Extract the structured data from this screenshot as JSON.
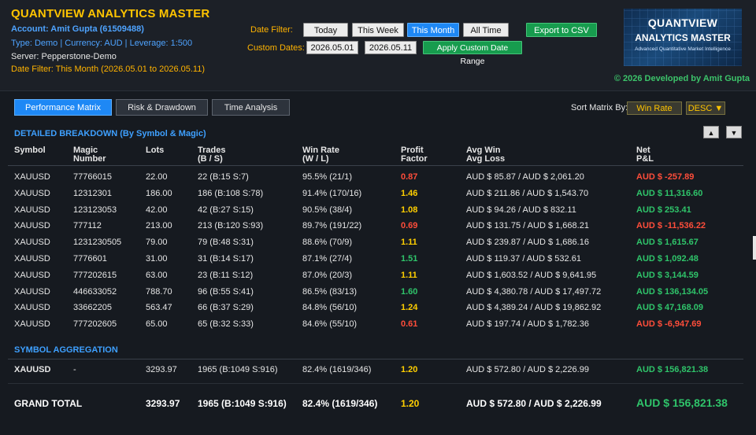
{
  "header": {
    "title": "QUANTVIEW ANALYTICS MASTER",
    "account": "Account: Amit Gupta (61509488)",
    "meta": "Type: Demo  |  Currency: AUD  |  Leverage: 1:500",
    "server": "Server: Pepperstone-Demo",
    "date_filter_status": "Date Filter: This Month (2026.05.01 to 2026.05.11)",
    "credit": "© 2026 Developed by Amit Gupta"
  },
  "filters": {
    "date_filter_label": "Date Filter:",
    "custom_dates_label": "Custom Dates:",
    "buttons": {
      "today": "Today",
      "this_week": "This Week",
      "this_month": "This Month",
      "all_time": "All Time"
    },
    "export": "Export to CSV",
    "custom_from": "2026.05.01",
    "custom_to": "2026.05.11",
    "apply": "Apply Custom Date Range"
  },
  "logo": {
    "line1": "QUANTVIEW",
    "line2": "ANALYTICS MASTER",
    "line3": "Advanced Quantitative Market Intelligence"
  },
  "tabs": {
    "performance": "Performance Matrix",
    "risk": "Risk & Drawdown",
    "time": "Time Analysis"
  },
  "sort": {
    "label": "Sort Matrix By:",
    "field": "Win Rate",
    "order": "DESC ▼"
  },
  "breakdown": {
    "title": "DETAILED BREAKDOWN (By Symbol & Magic)",
    "up": "▲",
    "down": "▼",
    "headers": {
      "symbol": "Symbol",
      "magic1": "Magic",
      "magic2": "Number",
      "lots": "Lots",
      "trades1": "Trades",
      "trades2": "(B / S)",
      "winrate1": "Win Rate",
      "winrate2": "(W / L)",
      "pf1": "Profit",
      "pf2": "Factor",
      "avg1": "Avg Win",
      "avg2": "Avg Loss",
      "pnl1": "Net",
      "pnl2": "P&L"
    },
    "rows": [
      {
        "symbol": "XAUUSD",
        "magic": "77766015",
        "lots": "22.00",
        "trades": "22  (B:15 S:7)",
        "winrate": "95.5%  (21/1)",
        "pf": "0.87",
        "pf_color": "red",
        "avg": "AUD $ 85.87 / AUD $ 2,061.20",
        "pnl": "AUD $ -257.89",
        "pnl_color": "red"
      },
      {
        "symbol": "XAUUSD",
        "magic": "12312301",
        "lots": "186.00",
        "trades": "186  (B:108 S:78)",
        "winrate": "91.4%  (170/16)",
        "pf": "1.46",
        "pf_color": "yellow",
        "avg": "AUD $ 211.86 / AUD $ 1,543.70",
        "pnl": "AUD $ 11,316.60",
        "pnl_color": "green"
      },
      {
        "symbol": "XAUUSD",
        "magic": "123123053",
        "lots": "42.00",
        "trades": "42  (B:27 S:15)",
        "winrate": "90.5%  (38/4)",
        "pf": "1.08",
        "pf_color": "yellow",
        "avg": "AUD $ 94.26 / AUD $ 832.11",
        "pnl": "AUD $ 253.41",
        "pnl_color": "green"
      },
      {
        "symbol": "XAUUSD",
        "magic": "777112",
        "lots": "213.00",
        "trades": "213  (B:120 S:93)",
        "winrate": "89.7%  (191/22)",
        "pf": "0.69",
        "pf_color": "red",
        "avg": "AUD $ 131.75 / AUD $ 1,668.21",
        "pnl": "AUD $ -11,536.22",
        "pnl_color": "red"
      },
      {
        "symbol": "XAUUSD",
        "magic": "1231230505",
        "lots": "79.00",
        "trades": "79  (B:48 S:31)",
        "winrate": "88.6%  (70/9)",
        "pf": "1.11",
        "pf_color": "yellow",
        "avg": "AUD $ 239.87 / AUD $ 1,686.16",
        "pnl": "AUD $ 1,615.67",
        "pnl_color": "green"
      },
      {
        "symbol": "XAUUSD",
        "magic": "7776601",
        "lots": "31.00",
        "trades": "31  (B:14 S:17)",
        "winrate": "87.1%  (27/4)",
        "pf": "1.51",
        "pf_color": "green",
        "avg": "AUD $ 119.37 / AUD $ 532.61",
        "pnl": "AUD $ 1,092.48",
        "pnl_color": "green"
      },
      {
        "symbol": "XAUUSD",
        "magic": "777202615",
        "lots": "63.00",
        "trades": "23  (B:11 S:12)",
        "winrate": "87.0%  (20/3)",
        "pf": "1.11",
        "pf_color": "yellow",
        "avg": "AUD $ 1,603.52 / AUD $ 9,641.95",
        "pnl": "AUD $ 3,144.59",
        "pnl_color": "green"
      },
      {
        "symbol": "XAUUSD",
        "magic": "446633052",
        "lots": "788.70",
        "trades": "96  (B:55 S:41)",
        "winrate": "86.5%  (83/13)",
        "pf": "1.60",
        "pf_color": "green",
        "avg": "AUD $ 4,380.78 / AUD $ 17,497.72",
        "pnl": "AUD $ 136,134.05",
        "pnl_color": "green"
      },
      {
        "symbol": "XAUUSD",
        "magic": "33662205",
        "lots": "563.47",
        "trades": "66  (B:37 S:29)",
        "winrate": "84.8%  (56/10)",
        "pf": "1.24",
        "pf_color": "yellow",
        "avg": "AUD $ 4,389.24 / AUD $ 19,862.92",
        "pnl": "AUD $ 47,168.09",
        "pnl_color": "green"
      },
      {
        "symbol": "XAUUSD",
        "magic": "777202605",
        "lots": "65.00",
        "trades": "65  (B:32 S:33)",
        "winrate": "84.6%  (55/10)",
        "pf": "0.61",
        "pf_color": "red",
        "avg": "AUD $ 197.74 / AUD $ 1,782.36",
        "pnl": "AUD $ -6,947.69",
        "pnl_color": "red"
      }
    ]
  },
  "aggregation": {
    "title": "SYMBOL AGGREGATION",
    "row": {
      "symbol": "XAUUSD",
      "magic": "-",
      "lots": "3293.97",
      "trades": "1965  (B:1049 S:916)",
      "winrate": "82.4%  (1619/346)",
      "pf": "1.20",
      "avg": "AUD $ 572.80 / AUD $ 2,226.99",
      "pnl": "AUD $ 156,821.38"
    }
  },
  "grand_total": {
    "label": "GRAND TOTAL",
    "lots": "3293.97",
    "trades": "1965  (B:1049 S:916)",
    "winrate": "82.4%  (1619/346)",
    "pf": "1.20",
    "avg": "AUD $ 572.80 / AUD $ 2,226.99",
    "pnl": "AUD $ 156,821.38"
  },
  "colors": {
    "accent": "#1e88f5",
    "title": "#ffc400",
    "positive": "#2fc46a",
    "negative": "#ff4d3a",
    "neutral": "#ffcf00"
  }
}
